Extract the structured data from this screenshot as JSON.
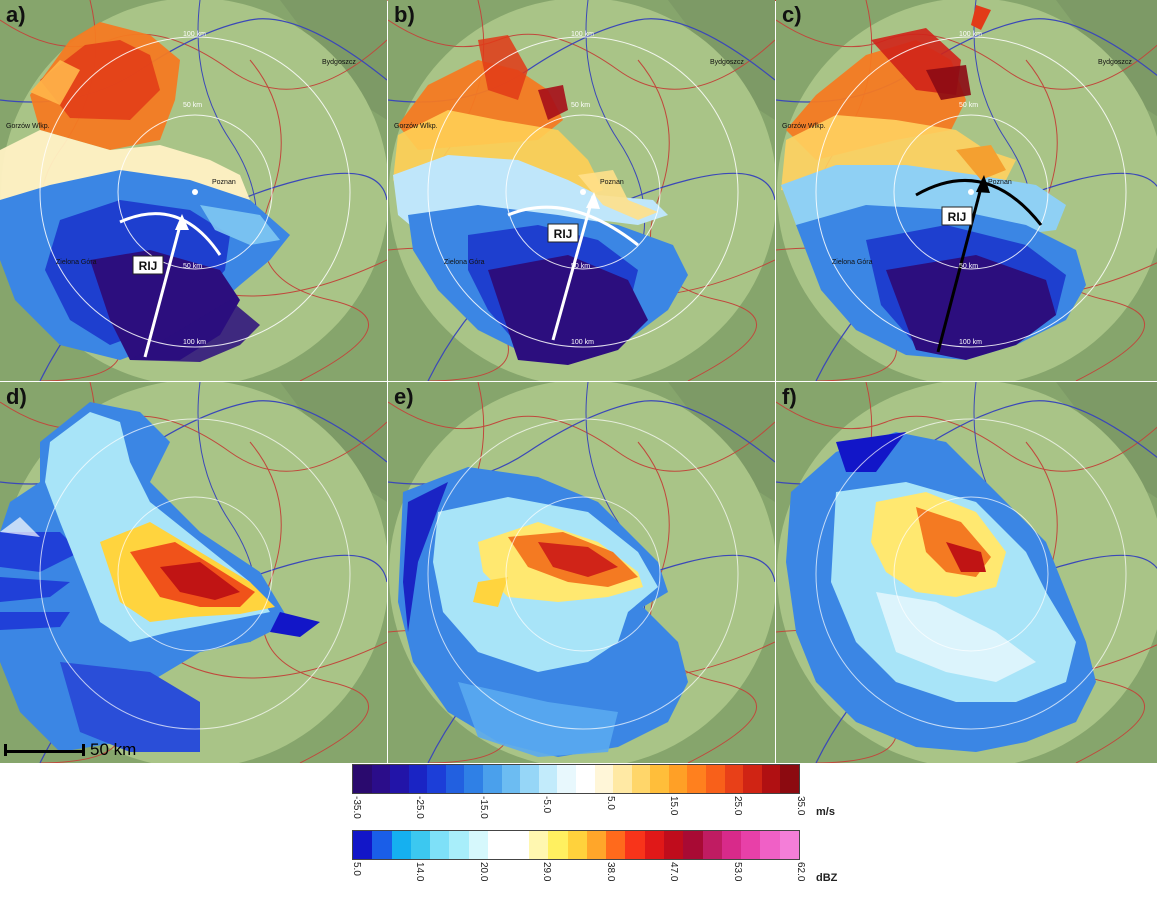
{
  "panels": [
    {
      "id": "a",
      "label": "a)",
      "type": "velocity",
      "rij": "RIJ",
      "cities": {
        "bydgoszcz": "Bydgoszcz",
        "gorzow": "Gorzów Wlkp.",
        "poznan": "Poznan",
        "zielona": "Zielona Góra"
      },
      "rings": {
        "r50a": "50 km",
        "r50b": "50 km",
        "r100a": "100 km",
        "r100b": "100 km"
      }
    },
    {
      "id": "b",
      "label": "b)",
      "type": "velocity",
      "rij": "RIJ",
      "cities": {
        "bydgoszcz": "Bydgoszcz",
        "gorzow": "Gorzów Wlkp.",
        "poznan": "Poznan",
        "zielona": "Zielona Góra"
      },
      "rings": {
        "r50a": "50 km",
        "r50b": "50 km",
        "r100a": "100 km",
        "r100b": "100 km"
      }
    },
    {
      "id": "c",
      "label": "c)",
      "type": "velocity",
      "rij": "RIJ",
      "cities": {
        "bydgoszcz": "Bydgoszcz",
        "gorzow": "Gorzów Wlkp.",
        "poznan": "Poznan",
        "zielona": "Zielona Góra"
      },
      "rings": {
        "r50a": "50 km",
        "r50b": "50 km",
        "r100a": "100 km",
        "r100b": "100 km"
      }
    },
    {
      "id": "d",
      "label": "d)",
      "type": "reflectivity"
    },
    {
      "id": "e",
      "label": "e)",
      "type": "reflectivity"
    },
    {
      "id": "f",
      "label": "f)",
      "type": "reflectivity"
    }
  ],
  "scale_bar": {
    "label": "50 km"
  },
  "velocity_scale": {
    "unit": "m/s",
    "ticks": [
      "-35.0",
      "-25.0",
      "-15.0",
      "-5.0",
      "5.0",
      "15.0",
      "25.0",
      "35.0"
    ],
    "colors": [
      "#2a0a6e",
      "#2b0d8a",
      "#2214a8",
      "#1a24c4",
      "#1c3ed8",
      "#2260e0",
      "#2f80e6",
      "#4aa0ec",
      "#6cbcf2",
      "#96d6f7",
      "#c2ebfb",
      "#e8f8fd",
      "#ffffff",
      "#fff6d8",
      "#ffe9a4",
      "#ffd66a",
      "#ffbe3a",
      "#ffa026",
      "#ff801e",
      "#f8601a",
      "#e84018",
      "#d02414",
      "#b01012",
      "#8c0a10"
    ]
  },
  "reflectivity_scale": {
    "unit": "dBZ",
    "ticks": [
      "5.0",
      "14.0",
      "20.0",
      "29.0",
      "38.0",
      "47.0",
      "53.0",
      "62.0"
    ],
    "colors": [
      "#1216c8",
      "#1a5ee8",
      "#15b0f0",
      "#3cc8f0",
      "#7ee0f8",
      "#a8eefa",
      "#d6f8fc",
      "#ffffff",
      "#fff7b0",
      "#fff060",
      "#ffd23c",
      "#ffa62a",
      "#ff6a1c",
      "#f8341a",
      "#e01818",
      "#c00c1c",
      "#a80a34",
      "#c01c62",
      "#d82a8a",
      "#e840a8",
      "#f060c6",
      "#f47ed8"
    ]
  }
}
